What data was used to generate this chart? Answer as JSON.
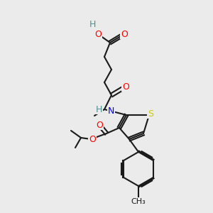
{
  "background_color": "#ebebeb",
  "bond_color": "#1a1a1a",
  "atom_colors": {
    "O": "#ff0000",
    "N": "#0000ff",
    "S": "#cccc00",
    "H": "#4a9090",
    "C": "#1a1a1a"
  },
  "font_size": 9,
  "bond_width": 1.5
}
